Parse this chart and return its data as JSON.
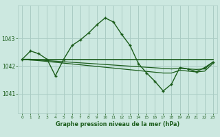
{
  "bg_color": "#cce8e0",
  "grid_color": "#aaccc4",
  "line_color": "#1a5c1a",
  "title": "Graphe pression niveau de la mer (hPa)",
  "xlim": [
    -0.5,
    23.5
  ],
  "ylim": [
    1040.3,
    1044.2
  ],
  "yticks": [
    1041,
    1042,
    1043
  ],
  "xticks": [
    0,
    1,
    2,
    3,
    4,
    5,
    6,
    7,
    8,
    9,
    10,
    11,
    12,
    13,
    14,
    15,
    16,
    17,
    18,
    19,
    20,
    21,
    22,
    23
  ],
  "hours": [
    0,
    1,
    2,
    3,
    4,
    5,
    6,
    7,
    8,
    9,
    10,
    11,
    12,
    13,
    14,
    15,
    16,
    17,
    18,
    19,
    20,
    21,
    22,
    23
  ],
  "pressure_main": [
    1042.25,
    1042.55,
    1042.45,
    1042.25,
    1041.65,
    1042.25,
    1042.75,
    1042.95,
    1043.2,
    1043.5,
    1043.75,
    1043.6,
    1043.15,
    1042.75,
    1042.1,
    1041.75,
    1041.45,
    1041.1,
    1041.35,
    1041.95,
    1041.9,
    1041.8,
    1041.95,
    1042.15
  ],
  "pressure_flat1": [
    1042.25,
    1042.25,
    1042.25,
    1042.25,
    1042.25,
    1042.25,
    1042.25,
    1042.25,
    1042.25,
    1042.25,
    1042.25,
    1042.25,
    1042.25,
    1042.25,
    1042.25,
    1042.25,
    1042.25,
    1042.25,
    1042.25,
    1042.25,
    1042.25,
    1042.25,
    1042.25,
    1042.25
  ],
  "pressure_flat2": [
    1042.25,
    1042.25,
    1042.22,
    1042.2,
    1042.18,
    1042.16,
    1042.14,
    1042.12,
    1042.1,
    1042.08,
    1042.06,
    1042.04,
    1042.02,
    1042.0,
    1041.98,
    1041.96,
    1041.94,
    1041.92,
    1041.9,
    1041.92,
    1041.9,
    1041.88,
    1041.9,
    1042.15
  ],
  "pressure_flat3": [
    1042.25,
    1042.22,
    1042.2,
    1042.17,
    1042.14,
    1042.11,
    1042.08,
    1042.05,
    1042.02,
    1041.99,
    1041.96,
    1041.93,
    1041.9,
    1041.87,
    1041.84,
    1041.81,
    1041.78,
    1041.75,
    1041.75,
    1041.85,
    1041.82,
    1041.79,
    1041.82,
    1042.1
  ],
  "figwidth": 3.2,
  "figheight": 2.0,
  "dpi": 100
}
